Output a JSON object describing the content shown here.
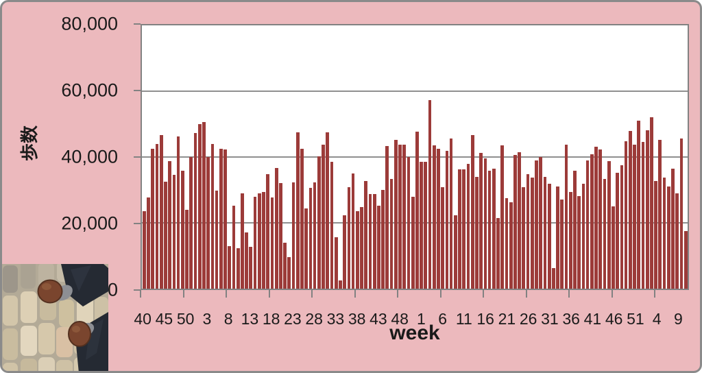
{
  "chart_data": {
    "type": "bar",
    "title": "",
    "ylabel": "歩数",
    "xlabel": "week",
    "ylim": [
      0,
      80000
    ],
    "yticks": [
      0,
      20000,
      40000,
      60000,
      80000
    ],
    "ytick_labels": [
      "0",
      "20,000",
      "40,000",
      "60,000",
      "80,000"
    ],
    "x_tick_labels": [
      "40",
      "45",
      "50",
      "3",
      "8",
      "13",
      "18",
      "23",
      "28",
      "33",
      "38",
      "43",
      "48",
      "1",
      "6",
      "11",
      "16",
      "21",
      "26",
      "31",
      "36",
      "41",
      "46",
      "51",
      "4",
      "9"
    ],
    "label_every_n_bars": 5,
    "x_axis_tick_every_n_bars": 10,
    "grid": true,
    "legend": false,
    "bar_color": "#9c3b39",
    "values": [
      23500,
      27800,
      42400,
      43900,
      46700,
      32500,
      38800,
      34600,
      46200,
      35900,
      24000,
      40100,
      47300,
      50100,
      50700,
      40100,
      43900,
      29700,
      42600,
      42300,
      12900,
      25200,
      12300,
      28900,
      17100,
      12800,
      28000,
      29000,
      29400,
      34700,
      27800,
      36600,
      32100,
      14000,
      9600,
      32300,
      47500,
      42400,
      24400,
      30600,
      32300,
      40200,
      43800,
      47400,
      38500,
      15700,
      2500,
      22200,
      30800,
      35100,
      23600,
      24800,
      32800,
      28800,
      28800,
      25300,
      29900,
      43300,
      33400,
      45300,
      43800,
      43800,
      40000,
      28000,
      47700,
      38500,
      38500,
      57300,
      43600,
      42600,
      30800,
      41900,
      45600,
      22200,
      36200,
      36200,
      38000,
      46700,
      34000,
      41200,
      39500,
      35900,
      36400,
      21500,
      43500,
      27500,
      26300,
      40700,
      41500,
      30800,
      34700,
      33800,
      39000,
      40000,
      34000,
      31800,
      6200,
      31100,
      27000,
      43800,
      29400,
      35800,
      28200,
      31900,
      39000,
      40800,
      43100,
      42200,
      33300,
      38800,
      25100,
      35300,
      37400,
      44700,
      48000,
      43800,
      51100,
      44500,
      48200,
      52000,
      32800,
      45300,
      33800,
      31000,
      36400,
      29000,
      45600,
      17500
    ]
  },
  "colors": {
    "background": "#ecb9bd",
    "frame_border": "#8a8a8a",
    "plot_background": "#ffffff",
    "gridline": "#8f8f8f",
    "axis": "#828282",
    "bar": "#9c3b39",
    "text": "#1a1a1a"
  },
  "photo": {
    "name": "walking-feet-on-cobblestones-photo"
  }
}
